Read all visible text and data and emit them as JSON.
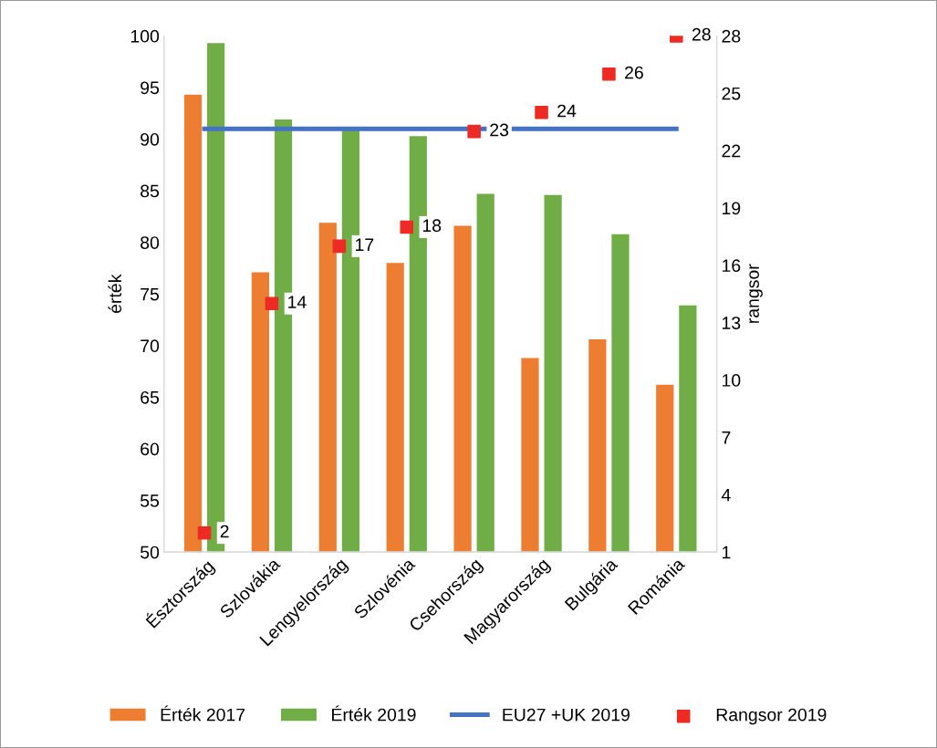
{
  "chart_data": {
    "type": "bar",
    "ylabel": "érték",
    "y2label": "rangsor",
    "categories": [
      "Észtország",
      "Szlovákia",
      "Lengyelország",
      "Szlovénia",
      "Csehország",
      "Magyarország",
      "Bulgária",
      "Románia"
    ],
    "series": [
      {
        "name": "Érték 2017",
        "color": "#ed7d31",
        "values": [
          94.3,
          77.1,
          81.9,
          78.0,
          81.6,
          68.8,
          70.6,
          66.2
        ]
      },
      {
        "name": "Érték 2019",
        "color": "#70ad47",
        "values": [
          99.3,
          91.9,
          90.9,
          90.3,
          84.7,
          84.6,
          80.8,
          73.9
        ]
      },
      {
        "name": "EU27 +UK 2019",
        "type": "line",
        "color": "#4472c4",
        "values": [
          91,
          91,
          91,
          91,
          91,
          91,
          91,
          91
        ]
      },
      {
        "name": "Rangsor 2019",
        "type": "scatter",
        "axis": "y2",
        "color": "#ee2a24",
        "marker": "square",
        "values": [
          2,
          14,
          17,
          18,
          23,
          24,
          26,
          28
        ],
        "value_labels": [
          "2",
          "14",
          "17",
          "18",
          "23",
          "24",
          "26",
          "28"
        ]
      }
    ],
    "ylim": [
      50,
      100
    ],
    "yticks": [
      50,
      55,
      60,
      65,
      70,
      75,
      80,
      85,
      90,
      95,
      100
    ],
    "y2lim": [
      1,
      28
    ],
    "y2ticks": [
      1,
      4,
      7,
      10,
      13,
      16,
      19,
      22,
      25,
      28
    ],
    "grid": false,
    "legend": "bottom"
  }
}
